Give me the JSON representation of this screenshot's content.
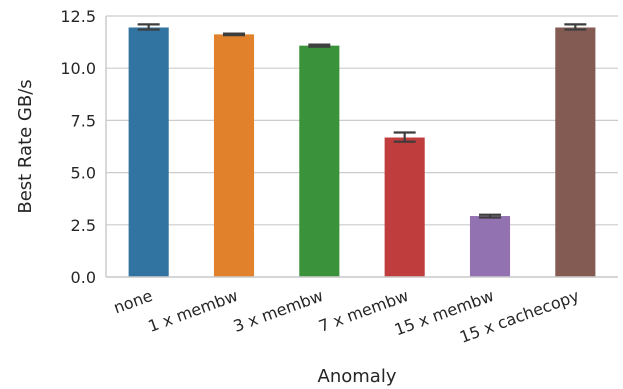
{
  "chart_data": {
    "type": "bar",
    "title": "",
    "xlabel": "Anomaly",
    "ylabel": "Best Rate GB/s",
    "categories": [
      "none",
      "1 x membw",
      "3 x membw",
      "7 x membw",
      "15 x membw",
      "15 x cachecopy"
    ],
    "values": [
      11.95,
      11.62,
      11.08,
      6.68,
      2.92,
      11.95
    ],
    "error_low": [
      11.85,
      11.58,
      11.03,
      6.48,
      2.85,
      11.85
    ],
    "error_high": [
      12.1,
      11.66,
      11.13,
      6.92,
      2.98,
      12.1
    ],
    "colors": [
      "#3274a1",
      "#e1812c",
      "#3a923a",
      "#c03d3e",
      "#9372b2",
      "#845b53"
    ],
    "ylim": [
      0,
      12.5
    ],
    "yticks": [
      0.0,
      2.5,
      5.0,
      7.5,
      10.0,
      12.5
    ],
    "ytick_labels": [
      "0.0",
      "2.5",
      "5.0",
      "7.5",
      "10.0",
      "12.5"
    ],
    "grid": "horizontal",
    "legend": "none"
  }
}
